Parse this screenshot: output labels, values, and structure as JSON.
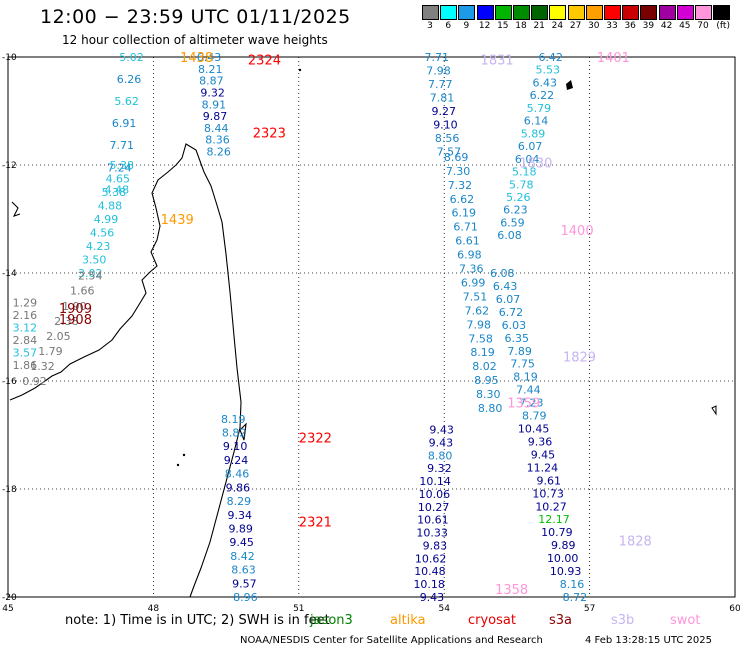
{
  "header": {
    "title": "12:00 − 23:59 UTC 01/11/2025",
    "subtitle": "12 hour collection of altimeter wave heights"
  },
  "legend": {
    "labels": [
      "3",
      "6",
      "9",
      "12",
      "15",
      "18",
      "21",
      "24",
      "27",
      "30",
      "33",
      "36",
      "39",
      "42",
      "45",
      "70",
      "(ft)"
    ],
    "colors": [
      "#808080",
      "#00ffff",
      "#1e9be6",
      "#0000ff",
      "#00b400",
      "#008c00",
      "#006400",
      "#ffff00",
      "#ffc800",
      "#ffa000",
      "#ff0000",
      "#c80000",
      "#780000",
      "#a000a0",
      "#d200d2",
      "#ff96dc",
      "#000000"
    ]
  },
  "map": {
    "lon_range": [
      45,
      60
    ],
    "lat_range": [
      -20,
      -10
    ],
    "lon_ticks": [
      "45",
      "48",
      "51",
      "54",
      "57",
      "60"
    ],
    "lat_ticks": [
      "-10",
      "-12",
      "-14",
      "-16",
      "-18",
      "-20"
    ],
    "grid": "dotted",
    "projection": "equirectangular"
  },
  "observations": {
    "colors": {
      "gray": "#777777",
      "cyan": "#22c0dd",
      "mid": "#1a86c8",
      "navy": "#000090",
      "green": "#00c000"
    },
    "tracks": [
      {
        "lat0": -10.0,
        "lat1": -12.45,
        "lonA": 47.8,
        "lonB": 47.5,
        "values": [
          "5.02",
          "6.26",
          "5.62",
          "6.91",
          "7.71",
          "7.24",
          "4.48"
        ]
      },
      {
        "lat0": -12.0,
        "lat1": -14.0,
        "lonA": 47.6,
        "lonB": 46.95,
        "values": [
          "5.38",
          "4.65",
          "5.38",
          "4.88",
          "4.99",
          "4.56",
          "4.23",
          "3.50",
          "3.02"
        ]
      },
      {
        "lat0": -14.05,
        "lat1": -16.0,
        "lonA": 46.95,
        "lonB": 45.8,
        "values": [
          "2.54",
          "1.66",
          "1.90",
          "2.38",
          "2.05",
          "1.79",
          "1.32",
          "0.92"
        ]
      },
      {
        "lat0": -14.55,
        "lat1": -15.7,
        "lonA": 45.6,
        "lonB": 45.6,
        "values": [
          "1.29",
          "2.16",
          "3.12",
          "2.84",
          "3.57",
          "1.86"
        ]
      },
      {
        "lat0": -10.0,
        "lat1": -11.75,
        "lonA": 49.4,
        "lonB": 49.6,
        "values": [
          "6.43",
          "8.21",
          "8.87",
          "9.32",
          "8.91",
          "9.87",
          "8.44",
          "8.36",
          "8.26"
        ]
      },
      {
        "lat0": -16.7,
        "lat1": -20.0,
        "lonA": 49.9,
        "lonB": 50.15,
        "values": [
          "8.19",
          "8.82",
          "9.10",
          "9.24",
          "8.46",
          "9.86",
          "8.29",
          "9.34",
          "9.89",
          "9.45",
          "8.42",
          "8.63",
          "9.57",
          "8.96"
        ]
      },
      {
        "lat0": -10.0,
        "lat1": -11.75,
        "lonA": 54.1,
        "lonB": 54.35,
        "values": [
          "7.71",
          "7.98",
          "7.77",
          "7.81",
          "9.27",
          "9.10",
          "8.56",
          "7.57"
        ]
      },
      {
        "lat0": -11.85,
        "lat1": -16.5,
        "lonA": 54.5,
        "lonB": 55.2,
        "values": [
          "8.69",
          "7.30",
          "7.32",
          "6.62",
          "6.19",
          "6.71",
          "6.61",
          "6.98",
          "7.36",
          "6.99",
          "7.51",
          "7.62",
          "7.98",
          "7.58",
          "8.19",
          "8.02",
          "8.95",
          "8.30",
          "8.80"
        ]
      },
      {
        "lat0": -16.9,
        "lat1": -20.0,
        "lonA": 54.2,
        "lonB": 54.0,
        "values": [
          "9.43",
          "9.43",
          "8.80",
          "9.32",
          "10.14",
          "10.06",
          "10.27",
          "10.61",
          "10.33",
          "9.83",
          "10.62",
          "10.48",
          "10.18",
          "9.43"
        ]
      },
      {
        "lat0": -10.0,
        "lat1": -13.3,
        "lonA": 56.45,
        "lonB": 55.6,
        "values": [
          "6.42",
          "5.53",
          "6.43",
          "6.22",
          "5.79",
          "6.14",
          "5.89",
          "6.07",
          "6.04",
          "5.18",
          "5.78",
          "5.26",
          "6.23",
          "6.59",
          "6.08"
        ]
      },
      {
        "lat0": -14.0,
        "lat1": -20.0,
        "lonA": 55.45,
        "lonB": 56.95,
        "values": [
          "6.08",
          "6.43",
          "6.07",
          "6.72",
          "6.03",
          "6.35",
          "7.89",
          "7.75",
          "8.19",
          "7.44",
          "7.23",
          "8.79",
          "10.45",
          "9.36",
          "9.45",
          "11.24",
          "9.61",
          "10.73",
          "10.27",
          "12.17",
          "10.79",
          "9.89",
          "10.00",
          "10.93",
          "8.16",
          "8.72"
        ]
      }
    ]
  },
  "time_labels": [
    {
      "text": "1438",
      "lat": -10.0,
      "lon": 48.55,
      "color": "#ff9900"
    },
    {
      "text": "2324",
      "lat": -10.05,
      "lon": 49.95,
      "color": "#ff0000"
    },
    {
      "text": "2323",
      "lat": -11.4,
      "lon": 50.05,
      "color": "#ff0000"
    },
    {
      "text": "1439",
      "lat": -13.0,
      "lon": 48.15,
      "color": "#ff9900"
    },
    {
      "text": "1909",
      "lat": -14.65,
      "lon": 46.05,
      "color": "#8b0000"
    },
    {
      "text": "1908",
      "lat": -14.85,
      "lon": 46.05,
      "color": "#8b0000"
    },
    {
      "text": "2322",
      "lat": -17.05,
      "lon": 51.0,
      "color": "#ff0000"
    },
    {
      "text": "2321",
      "lat": -18.6,
      "lon": 51.0,
      "color": "#ff0000"
    },
    {
      "text": "1831",
      "lat": -10.05,
      "lon": 54.75,
      "color": "#c8b4f0"
    },
    {
      "text": "1401",
      "lat": -10.0,
      "lon": 57.15,
      "color": "#ff96dc"
    },
    {
      "text": "1830",
      "lat": -11.95,
      "lon": 55.55,
      "color": "#c8b4f0"
    },
    {
      "text": "1400",
      "lat": -13.2,
      "lon": 56.4,
      "color": "#ff96dc"
    },
    {
      "text": "1829",
      "lat": -15.55,
      "lon": 56.45,
      "color": "#c8b4f0"
    },
    {
      "text": "1359",
      "lat": -16.4,
      "lon": 55.3,
      "color": "#ff96dc"
    },
    {
      "text": "1828",
      "lat": -18.95,
      "lon": 57.6,
      "color": "#c8b4f0"
    },
    {
      "text": "1358",
      "lat": -19.85,
      "lon": 55.05,
      "color": "#ff96dc"
    }
  ],
  "footer": {
    "note": "note: 1) Time is in UTC; 2) SWH is in feet",
    "satellites": [
      {
        "name": "jason3",
        "color": "#008000"
      },
      {
        "name": "altika",
        "color": "#ff9900"
      },
      {
        "name": "cryosat",
        "color": "#e00000"
      },
      {
        "name": "s3a",
        "color": "#8b0000"
      },
      {
        "name": "s3b",
        "color": "#c8b4f0"
      },
      {
        "name": "swot",
        "color": "#ff96dc"
      }
    ],
    "credit": "NOAA/NESDIS Center for Satellite Applications and Research",
    "timestamp": "4 Feb 13:28:15 UTC 2025"
  }
}
